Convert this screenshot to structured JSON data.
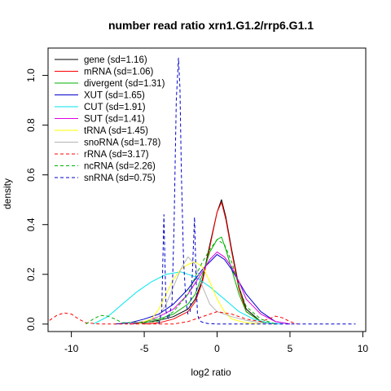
{
  "chart_data": {
    "type": "line",
    "title": "number read ratio xrn1.G1.2/rrp6.G1.1",
    "xlabel": "log2 ratio",
    "ylabel": "density",
    "xlim": [
      -11.6,
      10.2
    ],
    "ylim": [
      -0.03,
      1.11
    ],
    "xticks": [
      -10,
      -5,
      0,
      5,
      10
    ],
    "yticks": [
      0.0,
      0.2,
      0.4,
      0.6,
      0.8,
      1.0
    ],
    "xtick_labels": [
      "-10",
      "-5",
      "0",
      "5",
      "10"
    ],
    "ytick_labels": [
      "0.0",
      "0.2",
      "0.4",
      "0.6",
      "0.8",
      "1.0"
    ],
    "grid": false,
    "legend_position": "top-left",
    "series": [
      {
        "name": "gene (sd=1.16)",
        "color": "#000000",
        "dash": "solid",
        "x": [
          -6,
          -5,
          -4,
          -3,
          -2,
          -1.5,
          -1,
          -0.5,
          0,
          0.3,
          0.6,
          1,
          1.5,
          2,
          3,
          4
        ],
        "y": [
          0,
          0.005,
          0.015,
          0.03,
          0.06,
          0.1,
          0.18,
          0.32,
          0.45,
          0.5,
          0.43,
          0.3,
          0.15,
          0.06,
          0.01,
          0
        ]
      },
      {
        "name": "mRNA (sd=1.06)",
        "color": "#ff0000",
        "dash": "solid",
        "x": [
          -5,
          -4,
          -3,
          -2,
          -1.5,
          -1,
          -0.5,
          0,
          0.3,
          0.6,
          1,
          1.5,
          2,
          3,
          4
        ],
        "y": [
          0,
          0.005,
          0.02,
          0.05,
          0.09,
          0.17,
          0.31,
          0.45,
          0.49,
          0.42,
          0.29,
          0.14,
          0.05,
          0.01,
          0
        ]
      },
      {
        "name": "divergent (sd=1.31)",
        "color": "#00b000",
        "dash": "solid",
        "x": [
          -6,
          -5,
          -4,
          -3,
          -2,
          -1.5,
          -1,
          -0.5,
          0,
          0.3,
          0.6,
          1,
          1.5,
          2,
          3,
          4
        ],
        "y": [
          0,
          0.01,
          0.02,
          0.04,
          0.08,
          0.12,
          0.2,
          0.29,
          0.34,
          0.35,
          0.3,
          0.22,
          0.12,
          0.05,
          0.01,
          0
        ]
      },
      {
        "name": "XUT (sd=1.65)",
        "color": "#0000cc",
        "dash": "solid",
        "x": [
          -7,
          -6,
          -5,
          -4,
          -3,
          -2,
          -1,
          -0.5,
          0,
          0.5,
          1,
          2,
          3,
          4,
          5
        ],
        "y": [
          0,
          0.005,
          0.02,
          0.04,
          0.08,
          0.14,
          0.22,
          0.25,
          0.28,
          0.26,
          0.22,
          0.12,
          0.05,
          0.01,
          0
        ]
      },
      {
        "name": "CUT (sd=1.91)",
        "color": "#00e5ee",
        "dash": "solid",
        "x": [
          -8.5,
          -7.5,
          -6.5,
          -5.5,
          -4.5,
          -3.5,
          -2.5,
          -1.5,
          -0.5,
          0.5,
          1.5,
          2.5,
          3.5,
          4.5
        ],
        "y": [
          0,
          0.03,
          0.08,
          0.13,
          0.17,
          0.2,
          0.21,
          0.19,
          0.15,
          0.1,
          0.05,
          0.02,
          0.005,
          0
        ]
      },
      {
        "name": "SUT (sd=1.41)",
        "color": "#e000e0",
        "dash": "solid",
        "x": [
          -6,
          -5,
          -4,
          -3,
          -2,
          -1,
          -0.5,
          0,
          0.5,
          1,
          1.5,
          2,
          3,
          4,
          5
        ],
        "y": [
          0,
          0.01,
          0.03,
          0.06,
          0.12,
          0.21,
          0.26,
          0.29,
          0.27,
          0.23,
          0.17,
          0.1,
          0.04,
          0.01,
          0
        ]
      },
      {
        "name": "tRNA (sd=1.45)",
        "color": "#ffff00",
        "dash": "solid",
        "x": [
          -5.5,
          -4.5,
          -4,
          -3.5,
          -3,
          -2.5,
          -2,
          -1.5,
          -1,
          -0.5,
          0,
          0.5,
          1,
          2,
          3
        ],
        "y": [
          0,
          0.02,
          0.06,
          0.12,
          0.18,
          0.22,
          0.24,
          0.25,
          0.23,
          0.17,
          0.1,
          0.05,
          0.02,
          0.005,
          0
        ]
      },
      {
        "name": "snoRNA (sd=1.78)",
        "color": "#b4b4b4",
        "dash": "solid",
        "x": [
          -5,
          -4,
          -3.5,
          -3,
          -2.5,
          -2,
          -1.5,
          -1,
          -0.5,
          0,
          1,
          2,
          3,
          4
        ],
        "y": [
          0,
          0.03,
          0.08,
          0.15,
          0.22,
          0.27,
          0.24,
          0.15,
          0.08,
          0.05,
          0.03,
          0.015,
          0.005,
          0
        ]
      },
      {
        "name": "rRNA (sd=3.17)",
        "color": "#ff0000",
        "dash": "dashed",
        "x": [
          -11.5,
          -11,
          -10.5,
          -10,
          -9.5,
          -9,
          -8,
          -3,
          -2,
          -1,
          0,
          1,
          2,
          3,
          3.5,
          4,
          4.5,
          5,
          5.5
        ],
        "y": [
          0.015,
          0.035,
          0.045,
          0.04,
          0.02,
          0.005,
          0,
          0,
          0.01,
          0.03,
          0.05,
          0.04,
          0.02,
          0.01,
          0.02,
          0.032,
          0.025,
          0.01,
          0
        ]
      },
      {
        "name": "ncRNA (sd=2.26)",
        "color": "#00b000",
        "dash": "dashed",
        "x": [
          -9,
          -8.5,
          -8,
          -7.5,
          -7,
          -6.5,
          -4,
          -3,
          -2,
          -1.5,
          -1,
          -0.5,
          0,
          0.5,
          1,
          1.5,
          2,
          3,
          4
        ],
        "y": [
          0,
          0.02,
          0.035,
          0.032,
          0.02,
          0.005,
          0.01,
          0.05,
          0.12,
          0.19,
          0.25,
          0.3,
          0.34,
          0.32,
          0.25,
          0.15,
          0.07,
          0.02,
          0
        ]
      },
      {
        "name": "snRNA (sd=0.75)",
        "color": "#0000cc",
        "dash": "dashed",
        "x": [
          -4.0,
          -3.8,
          -3.65,
          -3.5,
          -3.35,
          -3.1,
          -2.95,
          -2.8,
          -2.65,
          -2.55,
          -2.45,
          -2.3,
          -2.15,
          -2.0,
          -1.85,
          -1.7,
          -1.55,
          -1.45,
          -1.35,
          -1.25,
          -1.1,
          -0.9,
          -0.6,
          0,
          1,
          3,
          5,
          9.5
        ],
        "y": [
          0,
          0.05,
          0.44,
          0.05,
          0.02,
          0.08,
          0.4,
          0.9,
          1.07,
          0.95,
          0.6,
          0.25,
          0.1,
          0.04,
          0.05,
          0.2,
          0.43,
          0.2,
          0.04,
          0.02,
          0.01,
          0.005,
          0.002,
          0,
          0,
          0,
          0,
          0
        ]
      }
    ]
  }
}
